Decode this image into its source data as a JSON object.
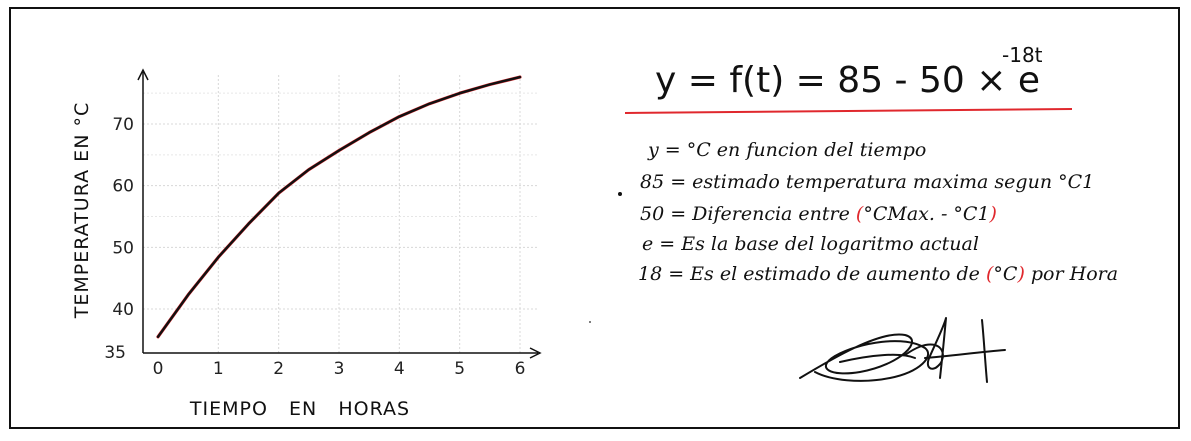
{
  "chart_data": {
    "type": "line",
    "title": "",
    "xlabel": "TIEMPO   EN   HORAS",
    "ylabel": "TEMPERATURA EN °C",
    "x_ticks": [
      "0",
      "1",
      "2",
      "3",
      "4",
      "5",
      "6"
    ],
    "y_ticks": [
      "35",
      "40",
      "50",
      "60",
      "70"
    ],
    "xlim": [
      0,
      6
    ],
    "ylim": [
      35,
      79
    ],
    "grid": true,
    "series": [
      {
        "color": "#111111",
        "x": [
          0,
          0.5,
          1,
          1.5,
          2,
          2.5,
          3,
          3.5,
          4,
          4.5,
          5,
          5.5,
          6
        ],
        "y": [
          35.5,
          42.3,
          48.4,
          53.8,
          58.8,
          62.6,
          65.7,
          68.6,
          71.2,
          73.3,
          75.0,
          76.4,
          77.6
        ]
      }
    ],
    "accent_color": "#e0282d"
  },
  "notes": {
    "formula_main": "y = f(t) = 85 - 50 × e",
    "formula_exp": "-18t",
    "lines": [
      {
        "pre": "y = °C en funcion del tiempo",
        "red": "",
        "post": ""
      },
      {
        "pre": "85 = estimado temperatura maxima segun °C1",
        "red": "",
        "post": ""
      },
      {
        "pre": "50 = Diferencia entre ",
        "red": "(",
        "mid": "°CMax. - °C1",
        "red2": ")",
        "post": ""
      },
      {
        "pre": "e = Es la base del logaritmo actual",
        "red": "",
        "post": ""
      },
      {
        "pre": "18 = Es el estimado de aumento de ",
        "red": "(",
        "mid": "°C",
        "red2": ")",
        "post": " por Hora"
      }
    ],
    "signature_icon": "signature"
  }
}
